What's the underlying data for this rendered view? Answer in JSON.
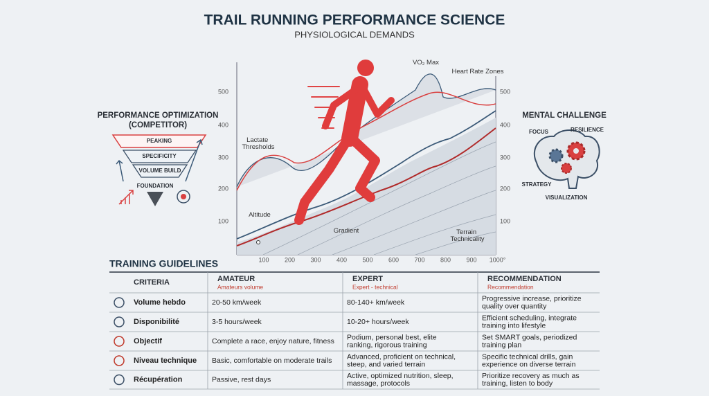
{
  "header": {
    "title": "TRAIL RUNNING PERFORMANCE SCIENCE",
    "subtitle": "PHYSIOLOGICAL DEMANDS"
  },
  "pyramid": {
    "title": [
      "PERFORMANCE OPTIMIZATION",
      "(COMPETITOR)"
    ],
    "levels": [
      "PEAKING",
      "SPECIFICITY",
      "VOLUME BUILD",
      "FOUNDATION"
    ]
  },
  "chart": {
    "yticks": [
      "500",
      "400",
      "300",
      "200",
      "100"
    ],
    "xticks": [
      "100",
      "200",
      "300",
      "400",
      "500",
      "600",
      "700",
      "800",
      "900",
      "1000°"
    ],
    "labels": [
      "VO₂ Max",
      "Heart Rate Zones",
      "Lactate Thresholds",
      "Altitude",
      "Gradient",
      "Terrain Technicality"
    ]
  },
  "mental": {
    "title": "MENTAL CHALLENGE",
    "items": [
      "FOCUS",
      "RESILIENCE",
      "STRATEGY",
      "VISUALIZATION"
    ]
  },
  "table": {
    "title": "TRAINING GUIDELINES",
    "columns": [
      {
        "name": "CRITERIA"
      },
      {
        "name": "AMATEUR",
        "sub": "Amateurs volume"
      },
      {
        "name": "EXPERT",
        "sub": "Expert - technical"
      },
      {
        "name": "RECOMMENDATION",
        "sub": "Recommendation"
      }
    ],
    "rows": [
      [
        "Volume hebdo",
        "20-50 km/week",
        "80-140+ km/week",
        "Progressive increase, prioritize quality over quantity"
      ],
      [
        "Disponibilité",
        "3-5 hours/week",
        "10-20+ hours/week",
        "Efficient scheduling, integrate training into lifestyle"
      ],
      [
        "Objectif",
        "Complete a race, enjoy nature, fitness",
        "Podium, personal best, elite ranking, rigorous training",
        "Set SMART goals, periodized training plan"
      ],
      [
        "Niveau technique",
        "Basic, comfortable on moderate trails",
        "Advanced, proficient on technical, steep, and varied terrain",
        "Specific technical drills, gain experience on diverse terrain"
      ],
      [
        "Récupération",
        "Passive, rest days",
        "Active, optimized nutrition, sleep, massage, protocols",
        "Prioritize recovery as much as training, listen to body"
      ]
    ]
  }
}
